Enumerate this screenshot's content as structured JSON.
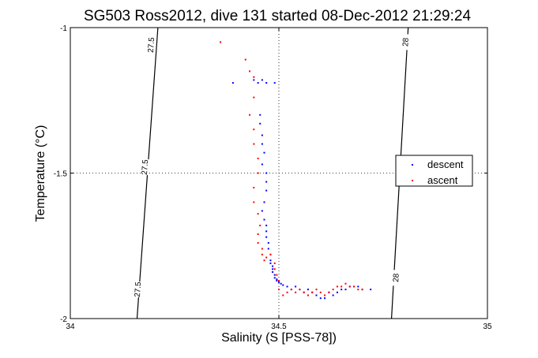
{
  "chart_data": {
    "type": "scatter",
    "title": "SG503 Ross2012, dive 131 started 08-Dec-2012 21:29:24",
    "xlabel": "Salinity (S [PSS-78])",
    "ylabel": "Temperature (°C)",
    "xlim": [
      34,
      35
    ],
    "ylim": [
      -2,
      -1
    ],
    "xticks": [
      34,
      34.5,
      35
    ],
    "xtick_labels": [
      "34",
      "34.5",
      "35"
    ],
    "yticks": [
      -2,
      -1.5,
      -1
    ],
    "ytick_labels": [
      "-2",
      "-1.5",
      "-1"
    ],
    "grid": "dotted at 34.5 and -1.5",
    "legend_position": "right",
    "isopycnals": [
      {
        "label": "27.5",
        "color": "#000000",
        "points": [
          [
            34.21,
            -1
          ],
          [
            34.16,
            -2
          ]
        ],
        "label_positions": [
          [
            34.195,
            -1.06
          ],
          [
            34.18,
            -1.48
          ],
          [
            34.163,
            -1.9
          ]
        ]
      },
      {
        "label": "28",
        "color": "#000000",
        "points": [
          [
            34.81,
            -1
          ],
          [
            34.77,
            -2
          ]
        ],
        "label_positions": [
          [
            34.805,
            -1.05
          ],
          [
            34.782,
            -1.86
          ]
        ]
      }
    ],
    "series": [
      {
        "name": "descent",
        "color": "#0000ff",
        "x": [
          34.39,
          34.44,
          34.45,
          34.46,
          34.47,
          34.49,
          34.455,
          34.455,
          34.46,
          34.46,
          34.465,
          34.46,
          34.47,
          34.47,
          34.47,
          34.465,
          34.46,
          34.465,
          34.47,
          34.47,
          34.47,
          34.475,
          34.475,
          34.48,
          34.48,
          34.48,
          34.485,
          34.485,
          34.485,
          34.49,
          34.49,
          34.495,
          34.495,
          34.5,
          34.505,
          34.51,
          34.52,
          34.53,
          34.54,
          34.55,
          34.56,
          34.57,
          34.58,
          34.59,
          34.6,
          34.61,
          34.62,
          34.63,
          34.64,
          34.65,
          34.66,
          34.67,
          34.68,
          34.69,
          34.7,
          34.72
        ],
        "y": [
          -1.19,
          -1.18,
          -1.19,
          -1.18,
          -1.19,
          -1.19,
          -1.3,
          -1.33,
          -1.37,
          -1.4,
          -1.43,
          -1.47,
          -1.5,
          -1.53,
          -1.56,
          -1.6,
          -1.63,
          -1.66,
          -1.68,
          -1.7,
          -1.72,
          -1.74,
          -1.76,
          -1.78,
          -1.8,
          -1.81,
          -1.82,
          -1.83,
          -1.84,
          -1.85,
          -1.86,
          -1.865,
          -1.87,
          -1.875,
          -1.88,
          -1.885,
          -1.89,
          -1.9,
          -1.89,
          -1.9,
          -1.91,
          -1.9,
          -1.91,
          -1.92,
          -1.93,
          -1.93,
          -1.91,
          -1.92,
          -1.91,
          -1.9,
          -1.9,
          -1.89,
          -1.89,
          -1.89,
          -1.9,
          -1.9
        ]
      },
      {
        "name": "ascent",
        "color": "#ff0000",
        "x": [
          34.36,
          34.42,
          34.43,
          34.44,
          34.44,
          34.43,
          34.44,
          34.44,
          34.45,
          34.45,
          34.44,
          34.44,
          34.45,
          34.455,
          34.45,
          34.45,
          34.46,
          34.46,
          34.465,
          34.47,
          34.48,
          34.49,
          34.49,
          34.495,
          34.5,
          34.5,
          34.51,
          34.52,
          34.53,
          34.54,
          34.55,
          34.56,
          34.57,
          34.58,
          34.59,
          34.6,
          34.61,
          34.62,
          34.63,
          34.64,
          34.65,
          34.66,
          34.67,
          34.68,
          34.69,
          34.7
        ],
        "y": [
          -1.05,
          -1.11,
          -1.15,
          -1.17,
          -1.24,
          -1.3,
          -1.35,
          -1.4,
          -1.45,
          -1.5,
          -1.55,
          -1.6,
          -1.64,
          -1.68,
          -1.71,
          -1.74,
          -1.76,
          -1.78,
          -1.8,
          -1.79,
          -1.78,
          -1.81,
          -1.83,
          -1.85,
          -1.87,
          -1.9,
          -1.92,
          -1.91,
          -1.9,
          -1.91,
          -1.9,
          -1.91,
          -1.92,
          -1.91,
          -1.9,
          -1.91,
          -1.92,
          -1.91,
          -1.9,
          -1.89,
          -1.89,
          -1.88,
          -1.89,
          -1.89,
          -1.9,
          -1.9
        ]
      }
    ]
  }
}
